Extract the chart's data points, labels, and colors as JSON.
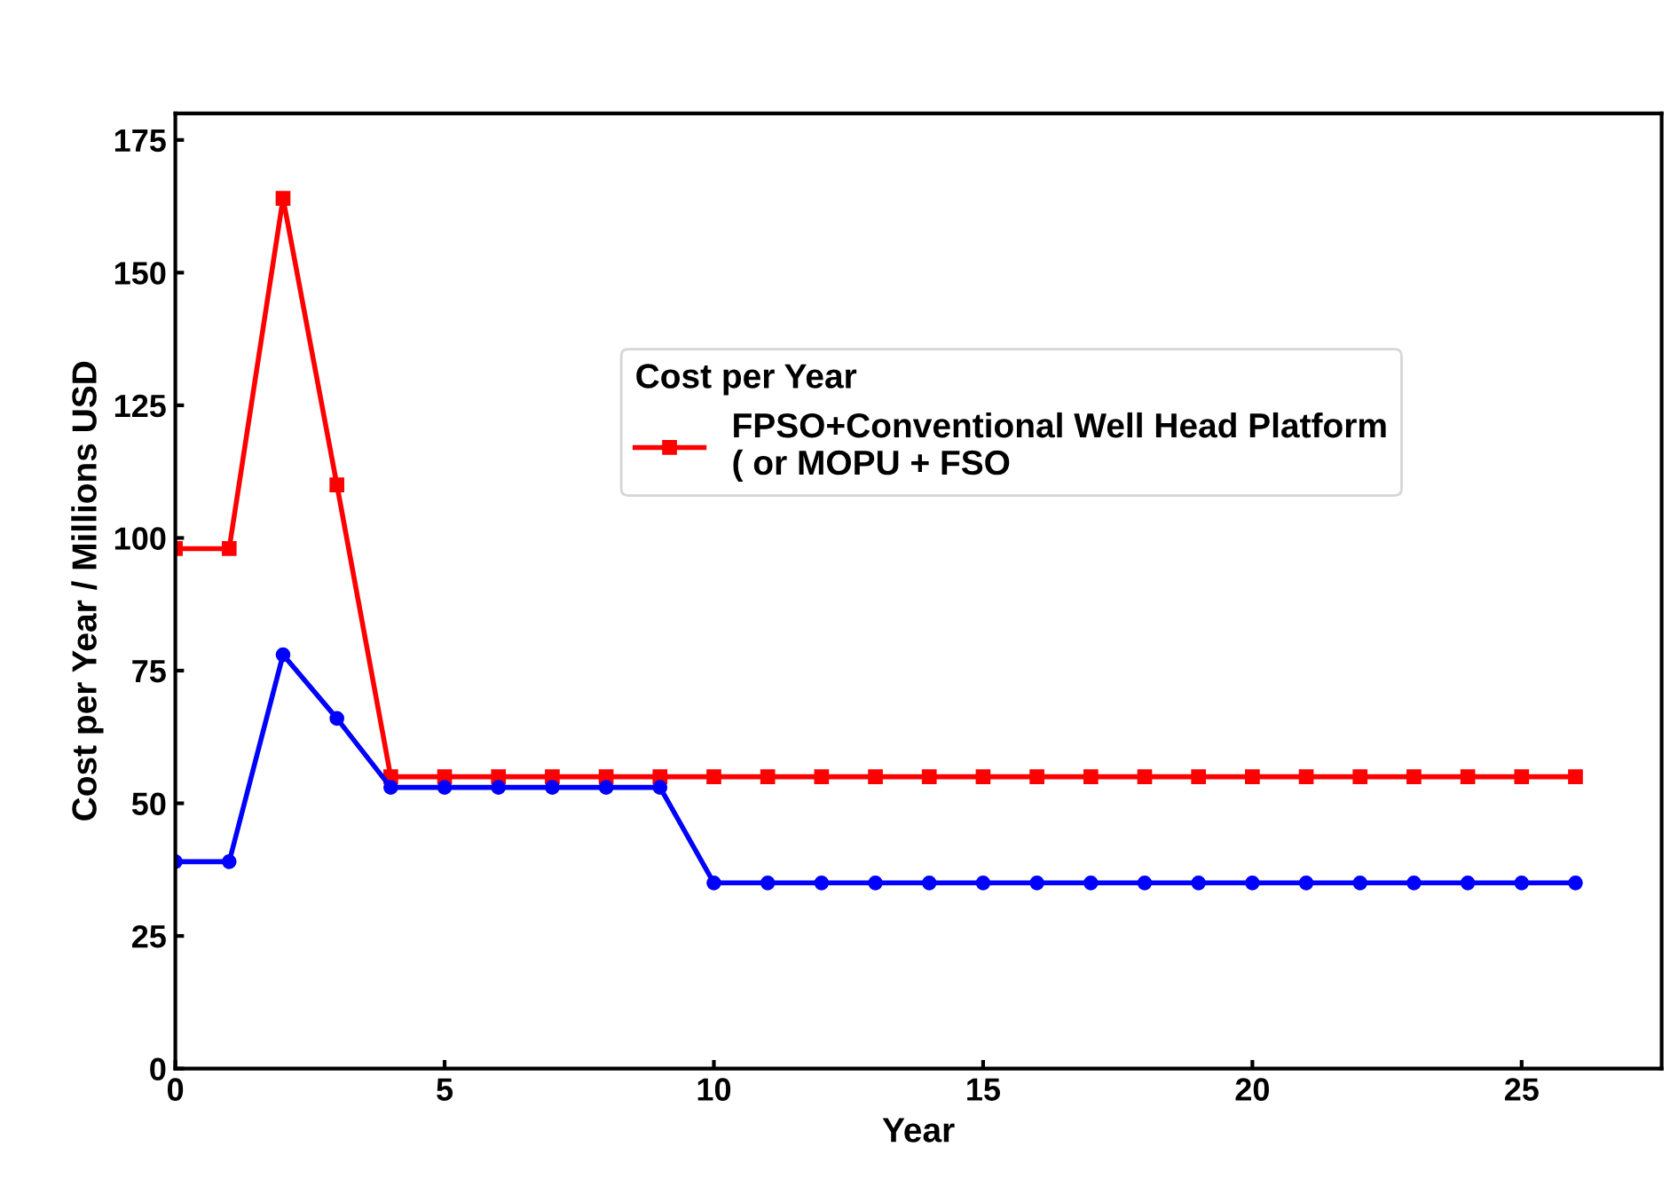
{
  "chart_data": {
    "type": "line",
    "xlabel": "Year",
    "ylabel": "Cost per Year / Millions USD",
    "legend_title": "Cost per Year",
    "legend": "top right",
    "grid": false,
    "x": [
      0,
      1,
      2,
      3,
      4,
      5,
      6,
      7,
      8,
      9,
      10,
      11,
      12,
      13,
      14,
      15,
      16,
      17,
      18,
      19,
      20,
      21,
      22,
      23,
      24,
      25,
      26
    ],
    "xlim": [
      0,
      27.6
    ],
    "xticks": [
      0,
      5,
      10,
      15,
      20,
      25
    ],
    "ylim": [
      0,
      180
    ],
    "yticks": [
      0,
      25,
      50,
      75,
      100,
      125,
      150,
      175
    ],
    "series": [
      {
        "name": "FPSO+Conventional Well Head Platform\n( or MOPU + FSO",
        "color": "#ff0000",
        "marker": "square",
        "values": [
          98,
          98,
          164,
          110,
          55,
          55,
          55,
          55,
          55,
          55,
          55,
          55,
          55,
          55,
          55,
          55,
          55,
          55,
          55,
          55,
          55,
          55,
          55,
          55,
          55,
          55,
          55
        ]
      },
      {
        "color": "#0000ff",
        "marker": "circle",
        "values": [
          39,
          39,
          78,
          66,
          53,
          53,
          53,
          53,
          53,
          53,
          35,
          35,
          35,
          35,
          35,
          35,
          35,
          35,
          35,
          35,
          35,
          35,
          35,
          35,
          35,
          35,
          35
        ]
      }
    ]
  }
}
